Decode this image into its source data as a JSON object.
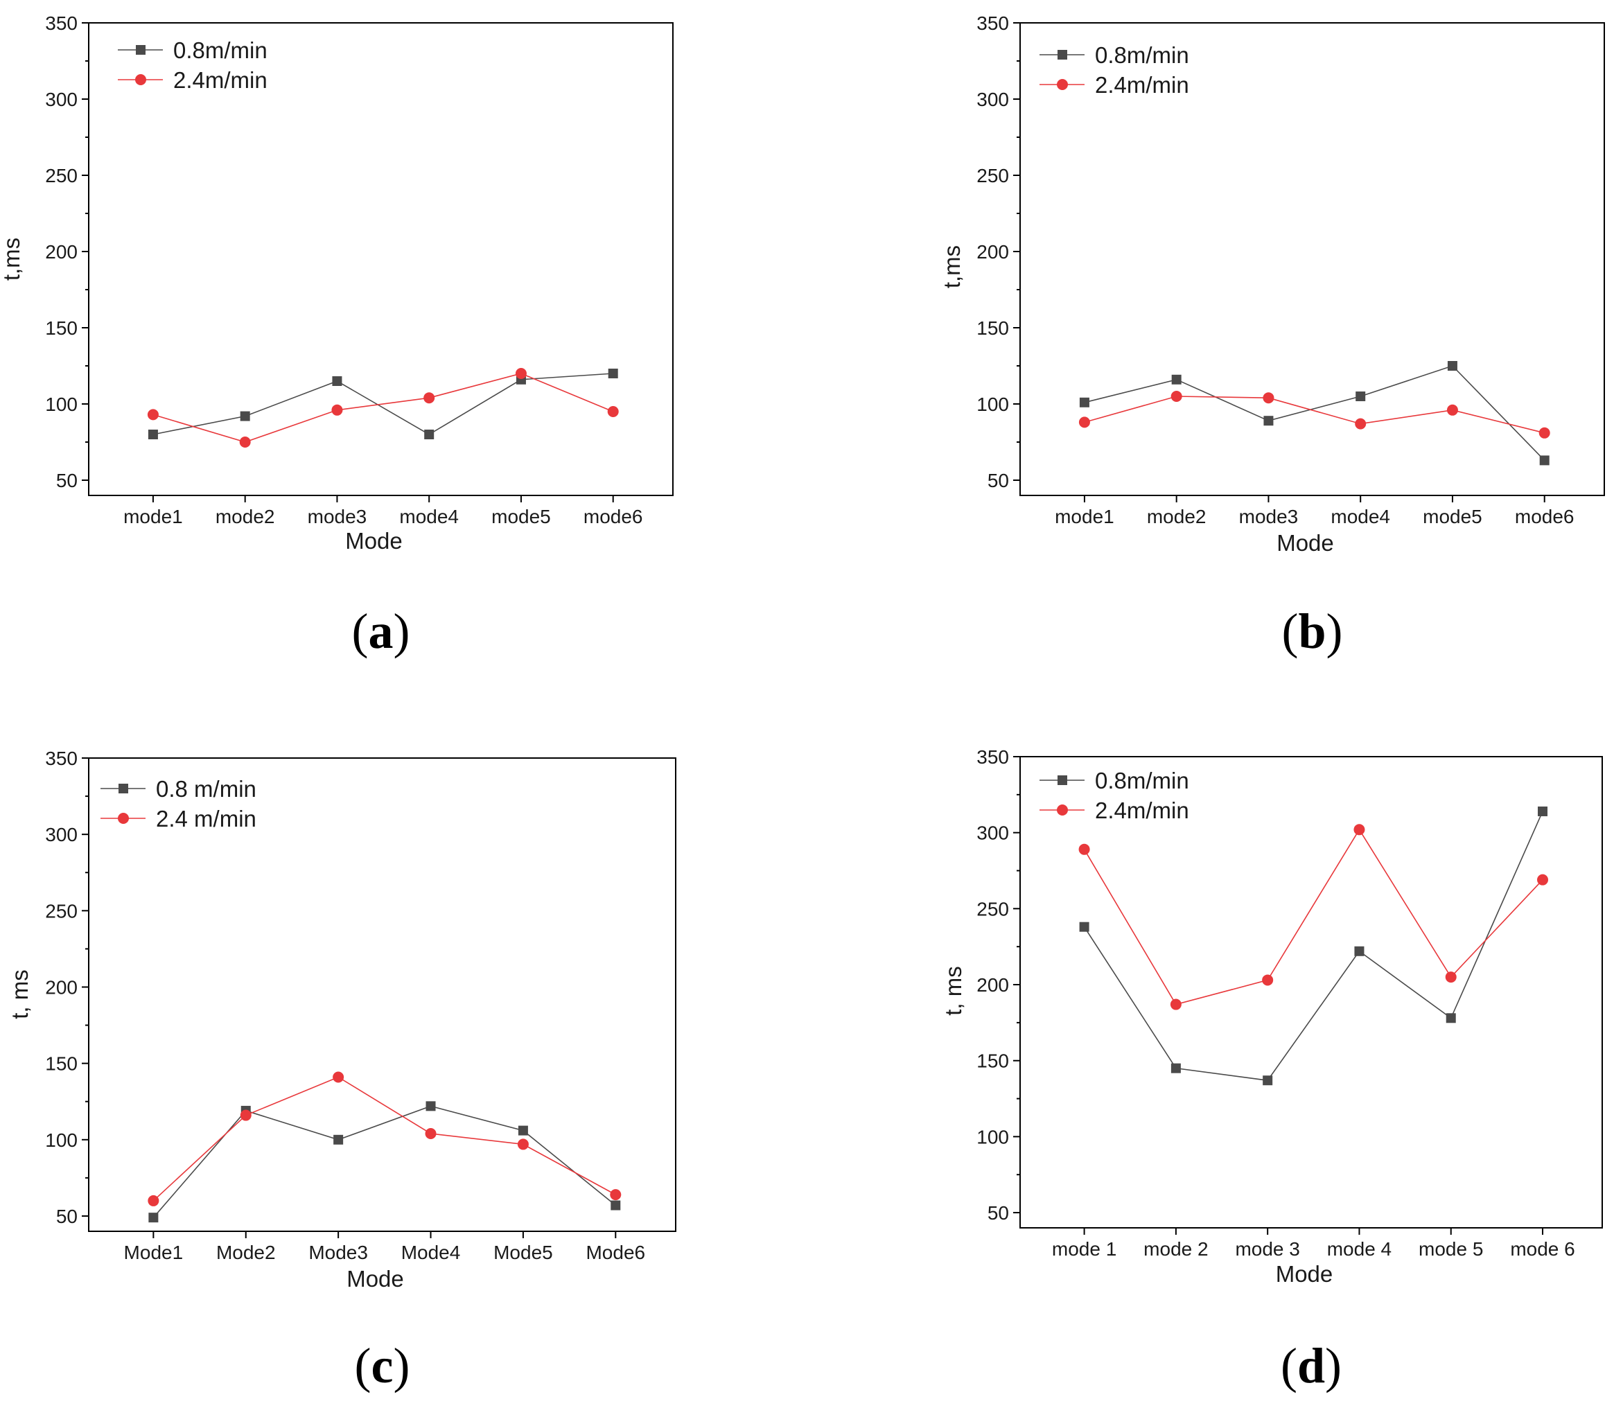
{
  "colors": {
    "series1": "#4a4a4a",
    "series2": "#e8383b",
    "axis": "#000000"
  },
  "chart_data": [
    {
      "type": "line",
      "panel_label": "a",
      "categories": [
        "mode1",
        "mode2",
        "mode3",
        "mode4",
        "mode5",
        "mode6"
      ],
      "xlabel": "Mode",
      "ylabel": "t,ms",
      "ylim": [
        40,
        350
      ],
      "yticks": [
        50,
        100,
        150,
        200,
        250,
        300,
        350
      ],
      "series": [
        {
          "name": "0.8m/min",
          "marker": "square",
          "values": [
            80,
            92,
            115,
            80,
            116,
            120
          ]
        },
        {
          "name": "2.4m/min",
          "marker": "circle",
          "values": [
            93,
            75,
            96,
            104,
            120,
            95
          ]
        }
      ]
    },
    {
      "type": "line",
      "panel_label": "b",
      "categories": [
        "mode1",
        "mode2",
        "mode3",
        "mode4",
        "mode5",
        "mode6"
      ],
      "xlabel": "Mode",
      "ylabel": "t,ms",
      "ylim": [
        40,
        350
      ],
      "yticks": [
        50,
        100,
        150,
        200,
        250,
        300,
        350
      ],
      "series": [
        {
          "name": "0.8m/min",
          "marker": "square",
          "values": [
            101,
            116,
            89,
            105,
            125,
            63
          ]
        },
        {
          "name": "2.4m/min",
          "marker": "circle",
          "values": [
            88,
            105,
            104,
            87,
            96,
            81
          ]
        }
      ]
    },
    {
      "type": "line",
      "panel_label": "c",
      "categories": [
        "Mode1",
        "Mode2",
        "Mode3",
        "Mode4",
        "Mode5",
        "Mode6"
      ],
      "xlabel": "Mode",
      "ylabel": "t, ms",
      "ylim": [
        40,
        350
      ],
      "yticks": [
        50,
        100,
        150,
        200,
        250,
        300,
        350
      ],
      "series": [
        {
          "name": "0.8 m/min",
          "marker": "square",
          "values": [
            49,
            119,
            100,
            122,
            106,
            57
          ]
        },
        {
          "name": "2.4 m/min",
          "marker": "circle",
          "values": [
            60,
            116,
            141,
            104,
            97,
            64
          ]
        }
      ]
    },
    {
      "type": "line",
      "panel_label": "d",
      "categories": [
        "mode 1",
        "mode 2",
        "mode 3",
        "mode 4",
        "mode 5",
        "mode 6"
      ],
      "xlabel": "Mode",
      "ylabel": "t, ms",
      "ylim": [
        40,
        350
      ],
      "yticks": [
        50,
        100,
        150,
        200,
        250,
        300,
        350
      ],
      "series": [
        {
          "name": "0.8m/min",
          "marker": "square",
          "values": [
            238,
            145,
            137,
            222,
            178,
            314
          ]
        },
        {
          "name": "2.4m/min",
          "marker": "circle",
          "values": [
            289,
            187,
            203,
            302,
            205,
            269
          ]
        }
      ]
    }
  ]
}
